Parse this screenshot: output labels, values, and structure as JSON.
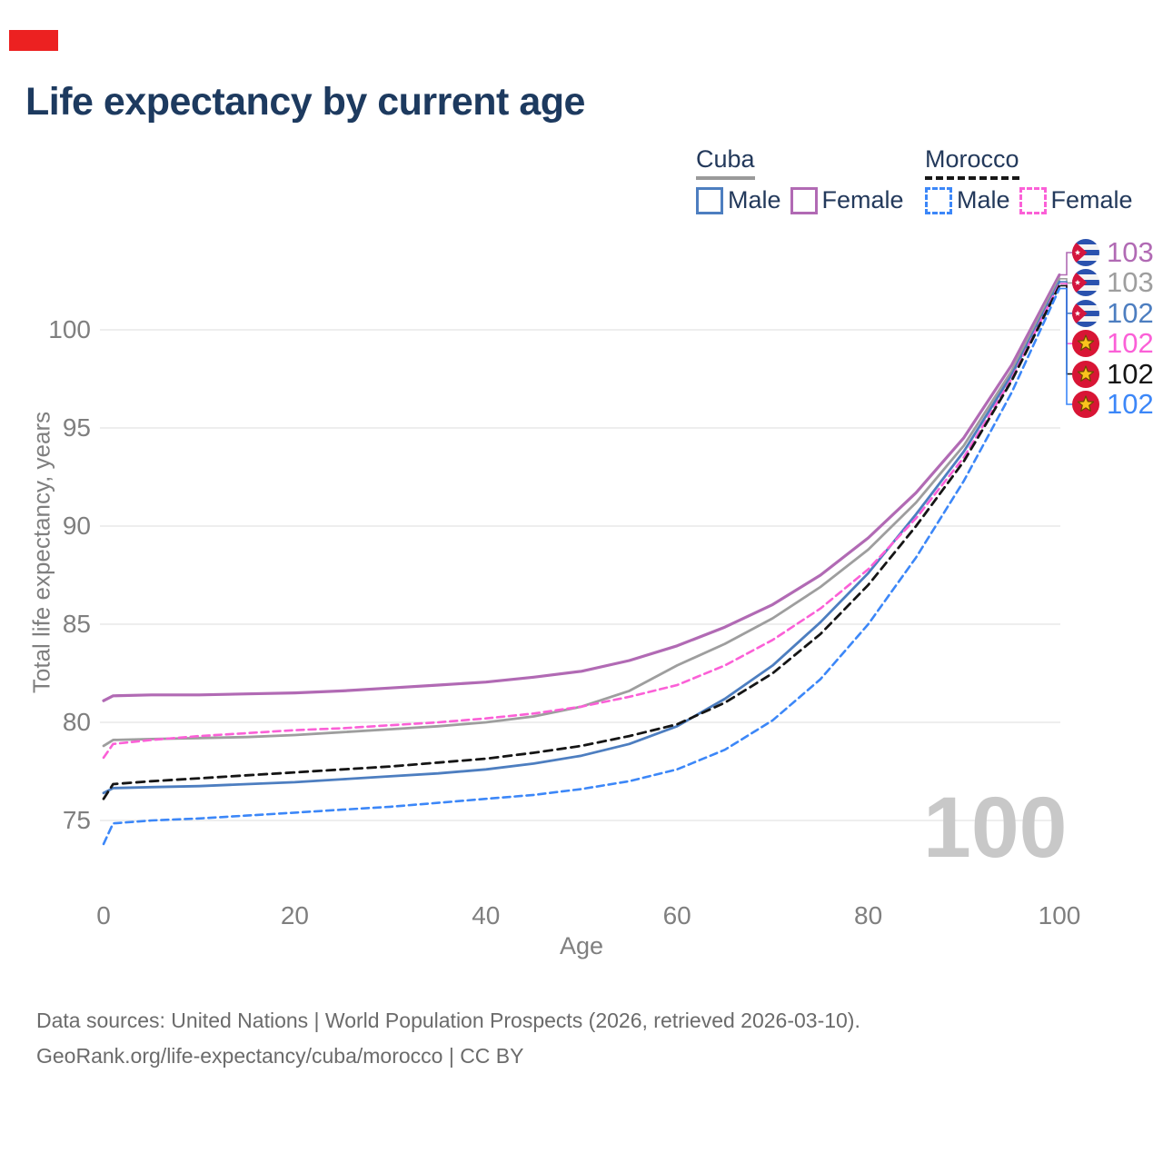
{
  "title": "Life expectancy by current age",
  "marker_color": "#ec2121",
  "legend": {
    "groups": [
      {
        "name": "Cuba",
        "line_style": "solid",
        "underline_color": "#9a9a9a",
        "items": [
          {
            "label": "Male",
            "color": "#4d7ec0"
          },
          {
            "label": "Female",
            "color": "#b16ab4"
          }
        ]
      },
      {
        "name": "Morocco",
        "line_style": "dashed",
        "underline_color": "#171717",
        "items": [
          {
            "label": "Male",
            "color": "#3c87f8"
          },
          {
            "label": "Female",
            "color": "#fb60d7"
          }
        ]
      }
    ]
  },
  "y_axis": {
    "title": "Total life expectancy, years",
    "ticks": [
      75,
      80,
      85,
      90,
      95,
      100
    ]
  },
  "x_axis": {
    "title": "Age",
    "ticks": [
      0,
      20,
      40,
      60,
      80,
      100
    ]
  },
  "watermark": "100",
  "end_labels": [
    {
      "value": "103",
      "flag": "cuba",
      "color": "#b16ab4"
    },
    {
      "value": "103",
      "flag": "cuba",
      "color": "#9e9e9e"
    },
    {
      "value": "102",
      "flag": "cuba",
      "color": "#4d7ec0"
    },
    {
      "value": "102",
      "flag": "morocco",
      "color": "#fb60d7"
    },
    {
      "value": "102",
      "flag": "morocco",
      "color": "#151515"
    },
    {
      "value": "102",
      "flag": "morocco",
      "color": "#3c87f8"
    }
  ],
  "footer": {
    "line1": "Data sources: United Nations | World Population Prospects (2026, retrieved 2026-03-10).",
    "line2": "GeoRank.org/life-expectancy/cuba/morocco | CC BY"
  },
  "chart_data": {
    "type": "line",
    "title": "Life expectancy by current age",
    "xlabel": "Age",
    "ylabel": "Total life expectancy, years",
    "xlim": [
      0,
      100
    ],
    "ylim": [
      73,
      104
    ],
    "grid": true,
    "legend_position": "top-right",
    "x": [
      0,
      1,
      5,
      10,
      15,
      20,
      25,
      30,
      35,
      40,
      45,
      50,
      55,
      60,
      65,
      70,
      75,
      80,
      85,
      90,
      95,
      100
    ],
    "series": [
      {
        "id": "cuba-female",
        "name": "Cuba Female",
        "color": "#b16ab4",
        "style": "solid",
        "width": 3.2,
        "dash": "",
        "values": [
          81.1,
          81.35,
          81.4,
          81.4,
          81.45,
          81.5,
          81.6,
          81.75,
          81.9,
          82.05,
          82.3,
          82.6,
          83.15,
          83.9,
          84.85,
          86.0,
          87.5,
          89.4,
          91.7,
          94.5,
          98.2,
          102.8
        ]
      },
      {
        "id": "cuba-both",
        "name": "Cuba (both sexes)",
        "color": "#9e9e9e",
        "style": "solid",
        "width": 2.8,
        "dash": "",
        "values": [
          78.8,
          79.1,
          79.15,
          79.2,
          79.25,
          79.35,
          79.5,
          79.65,
          79.8,
          80.0,
          80.3,
          80.8,
          81.6,
          82.9,
          84.0,
          85.3,
          86.9,
          88.8,
          91.2,
          94.1,
          97.9,
          102.6
        ]
      },
      {
        "id": "cuba-male",
        "name": "Cuba Male",
        "color": "#4d7ec0",
        "style": "solid",
        "width": 2.8,
        "dash": "",
        "values": [
          76.4,
          76.65,
          76.7,
          76.75,
          76.85,
          76.95,
          77.1,
          77.25,
          77.4,
          77.6,
          77.9,
          78.3,
          78.9,
          79.8,
          81.2,
          82.9,
          85.1,
          87.6,
          90.6,
          93.8,
          97.7,
          102.45
        ]
      },
      {
        "id": "morocco-female",
        "name": "Morocco Female",
        "color": "#fb60d7",
        "style": "dashed",
        "width": 2.6,
        "dash": "8 5",
        "values": [
          78.2,
          78.9,
          79.1,
          79.3,
          79.45,
          79.6,
          79.7,
          79.85,
          80.0,
          80.2,
          80.45,
          80.8,
          81.3,
          81.9,
          82.9,
          84.2,
          85.8,
          87.8,
          90.4,
          93.5,
          97.5,
          102.35
        ]
      },
      {
        "id": "morocco-both",
        "name": "Morocco (both sexes)",
        "color": "#151515",
        "style": "dashed",
        "width": 2.8,
        "dash": "9 6",
        "values": [
          76.1,
          76.85,
          77.0,
          77.15,
          77.3,
          77.45,
          77.6,
          77.75,
          77.95,
          78.15,
          78.45,
          78.8,
          79.3,
          79.9,
          81.0,
          82.5,
          84.5,
          87.0,
          90.0,
          93.3,
          97.4,
          102.25
        ]
      },
      {
        "id": "morocco-male",
        "name": "Morocco Male",
        "color": "#3c87f8",
        "style": "dashed",
        "width": 2.6,
        "dash": "8 5",
        "values": [
          73.8,
          74.85,
          75.0,
          75.1,
          75.25,
          75.4,
          75.55,
          75.7,
          75.9,
          76.1,
          76.3,
          76.6,
          77.0,
          77.6,
          78.6,
          80.1,
          82.2,
          85.0,
          88.4,
          92.3,
          96.8,
          102.1
        ]
      }
    ]
  }
}
